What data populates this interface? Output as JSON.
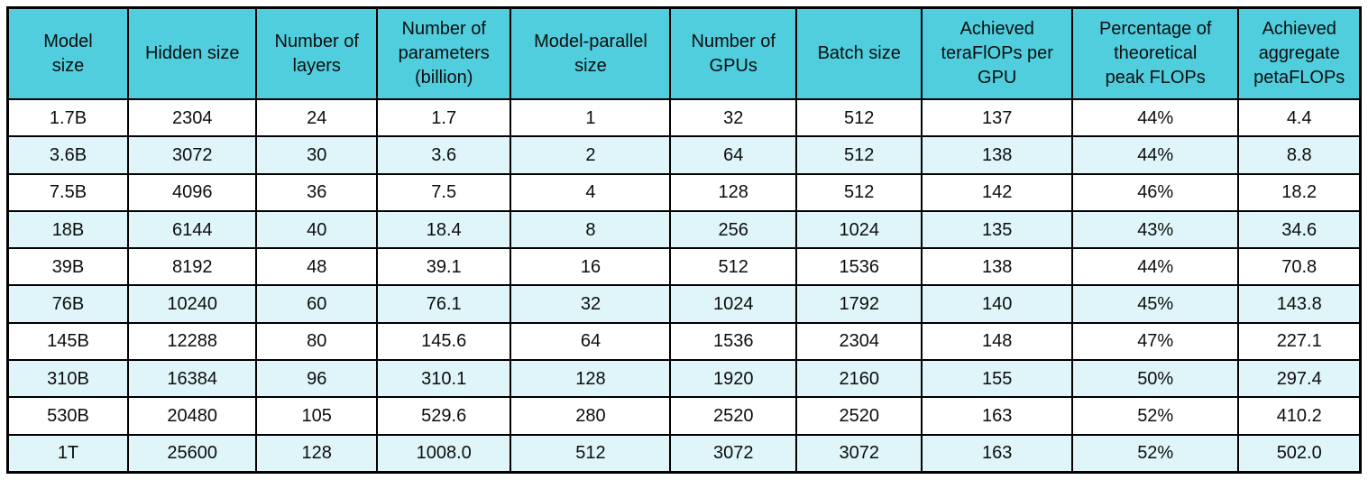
{
  "chart_data": {
    "type": "table",
    "columns": [
      [
        "Model",
        "size"
      ],
      [
        "Hidden size"
      ],
      [
        "Number of",
        "layers"
      ],
      [
        "Number of",
        "parameters",
        "(billion)"
      ],
      [
        "Model-parallel",
        "size"
      ],
      [
        "Number of",
        "GPUs"
      ],
      [
        "Batch size"
      ],
      [
        "Achieved",
        "teraFlOPs per",
        "GPU"
      ],
      [
        "Percentage of",
        "theoretical",
        "peak FLOPs"
      ],
      [
        "Achieved",
        "aggregate",
        "petaFLOPs"
      ]
    ],
    "rows": [
      [
        "1.7B",
        "2304",
        "24",
        "1.7",
        "1",
        "32",
        "512",
        "137",
        "44%",
        "4.4"
      ],
      [
        "3.6B",
        "3072",
        "30",
        "3.6",
        "2",
        "64",
        "512",
        "138",
        "44%",
        "8.8"
      ],
      [
        "7.5B",
        "4096",
        "36",
        "7.5",
        "4",
        "128",
        "512",
        "142",
        "46%",
        "18.2"
      ],
      [
        "18B",
        "6144",
        "40",
        "18.4",
        "8",
        "256",
        "1024",
        "135",
        "43%",
        "34.6"
      ],
      [
        "39B",
        "8192",
        "48",
        "39.1",
        "16",
        "512",
        "1536",
        "138",
        "44%",
        "70.8"
      ],
      [
        "76B",
        "10240",
        "60",
        "76.1",
        "32",
        "1024",
        "1792",
        "140",
        "45%",
        "143.8"
      ],
      [
        "145B",
        "12288",
        "80",
        "145.6",
        "64",
        "1536",
        "2304",
        "148",
        "47%",
        "227.1"
      ],
      [
        "310B",
        "16384",
        "96",
        "310.1",
        "128",
        "1920",
        "2160",
        "155",
        "50%",
        "297.4"
      ],
      [
        "530B",
        "20480",
        "105",
        "529.6",
        "280",
        "2520",
        "2520",
        "163",
        "52%",
        "410.2"
      ],
      [
        "1T",
        "25600",
        "128",
        "1008.0",
        "512",
        "3072",
        "3072",
        "163",
        "52%",
        "502.0"
      ]
    ],
    "layout": {
      "grid": "on",
      "row_striping": "alternate, first data row white"
    }
  },
  "colors": {
    "header_bg": "#50cede",
    "row_bg": "#ffffff",
    "row_stripe_bg": "#dff5f9",
    "border": "#000000",
    "text": "#0d0d0d"
  }
}
